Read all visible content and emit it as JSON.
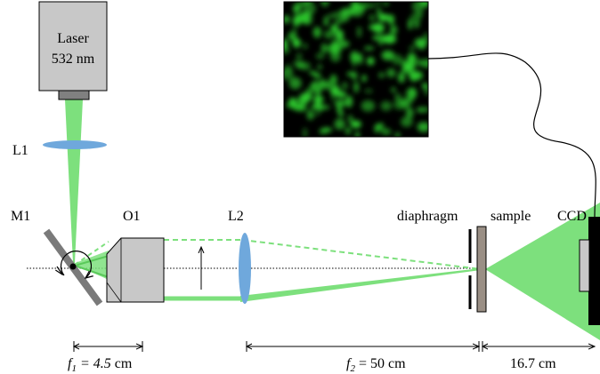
{
  "laser": {
    "line1": "Laser",
    "line2": "532 nm"
  },
  "components": {
    "l1": "L1",
    "m1": "M1",
    "o1": "O1",
    "l2": "L2",
    "diaphragm": "diaphragm",
    "sample": "sample",
    "ccd": "CCD"
  },
  "dimensions": {
    "f1_symbol": "f",
    "f1_sub": "1",
    "f1_value": " = 4.5",
    "f1_unit": " cm",
    "f2_symbol": "f",
    "f2_sub": "2",
    "f2_value": " = 50 cm",
    "d3": "16.7 cm"
  },
  "colors": {
    "beam": "#7de07d",
    "beam_dark": "#5bc95b",
    "lens": "#6fa8dc",
    "housing": "#c8c8c8",
    "diaphragm_plate": "#9a8f85",
    "speckle_bg": "#000000",
    "speckle_green": "#2ecc2e"
  }
}
